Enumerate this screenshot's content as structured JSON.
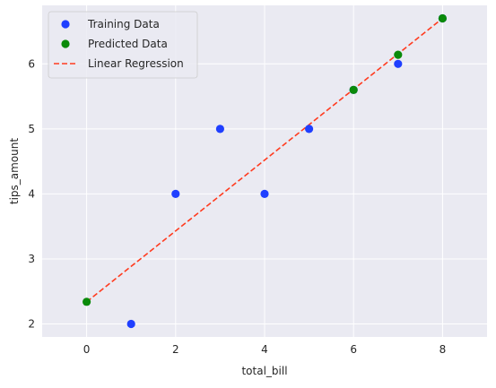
{
  "chart_data": {
    "type": "scatter",
    "xlabel": "total_bill",
    "ylabel": "tips_amount",
    "xlim": [
      -1,
      9
    ],
    "ylim": [
      1.8,
      6.9
    ],
    "xticks": [
      0,
      2,
      4,
      6,
      8
    ],
    "yticks": [
      2,
      3,
      4,
      5,
      6
    ],
    "grid": true,
    "legend_position": "top-left",
    "background": "#eaeaf2",
    "series": [
      {
        "name": "Training Data",
        "kind": "scatter",
        "color": "#1f3fff",
        "x": [
          1,
          2,
          3,
          4,
          5,
          6,
          7,
          8
        ],
        "y": [
          2,
          4,
          5,
          4,
          5,
          5.6,
          6,
          6.7
        ]
      },
      {
        "name": "Predicted Data",
        "kind": "scatter",
        "color": "#0a8a0a",
        "x": [
          0,
          6,
          7,
          8
        ],
        "y": [
          2.34,
          5.6,
          6.14,
          6.7
        ]
      },
      {
        "name": "Linear Regression",
        "kind": "line",
        "style": "dashed",
        "color": "#ff3b1f",
        "x": [
          0,
          8
        ],
        "y": [
          2.34,
          6.7
        ]
      }
    ]
  }
}
